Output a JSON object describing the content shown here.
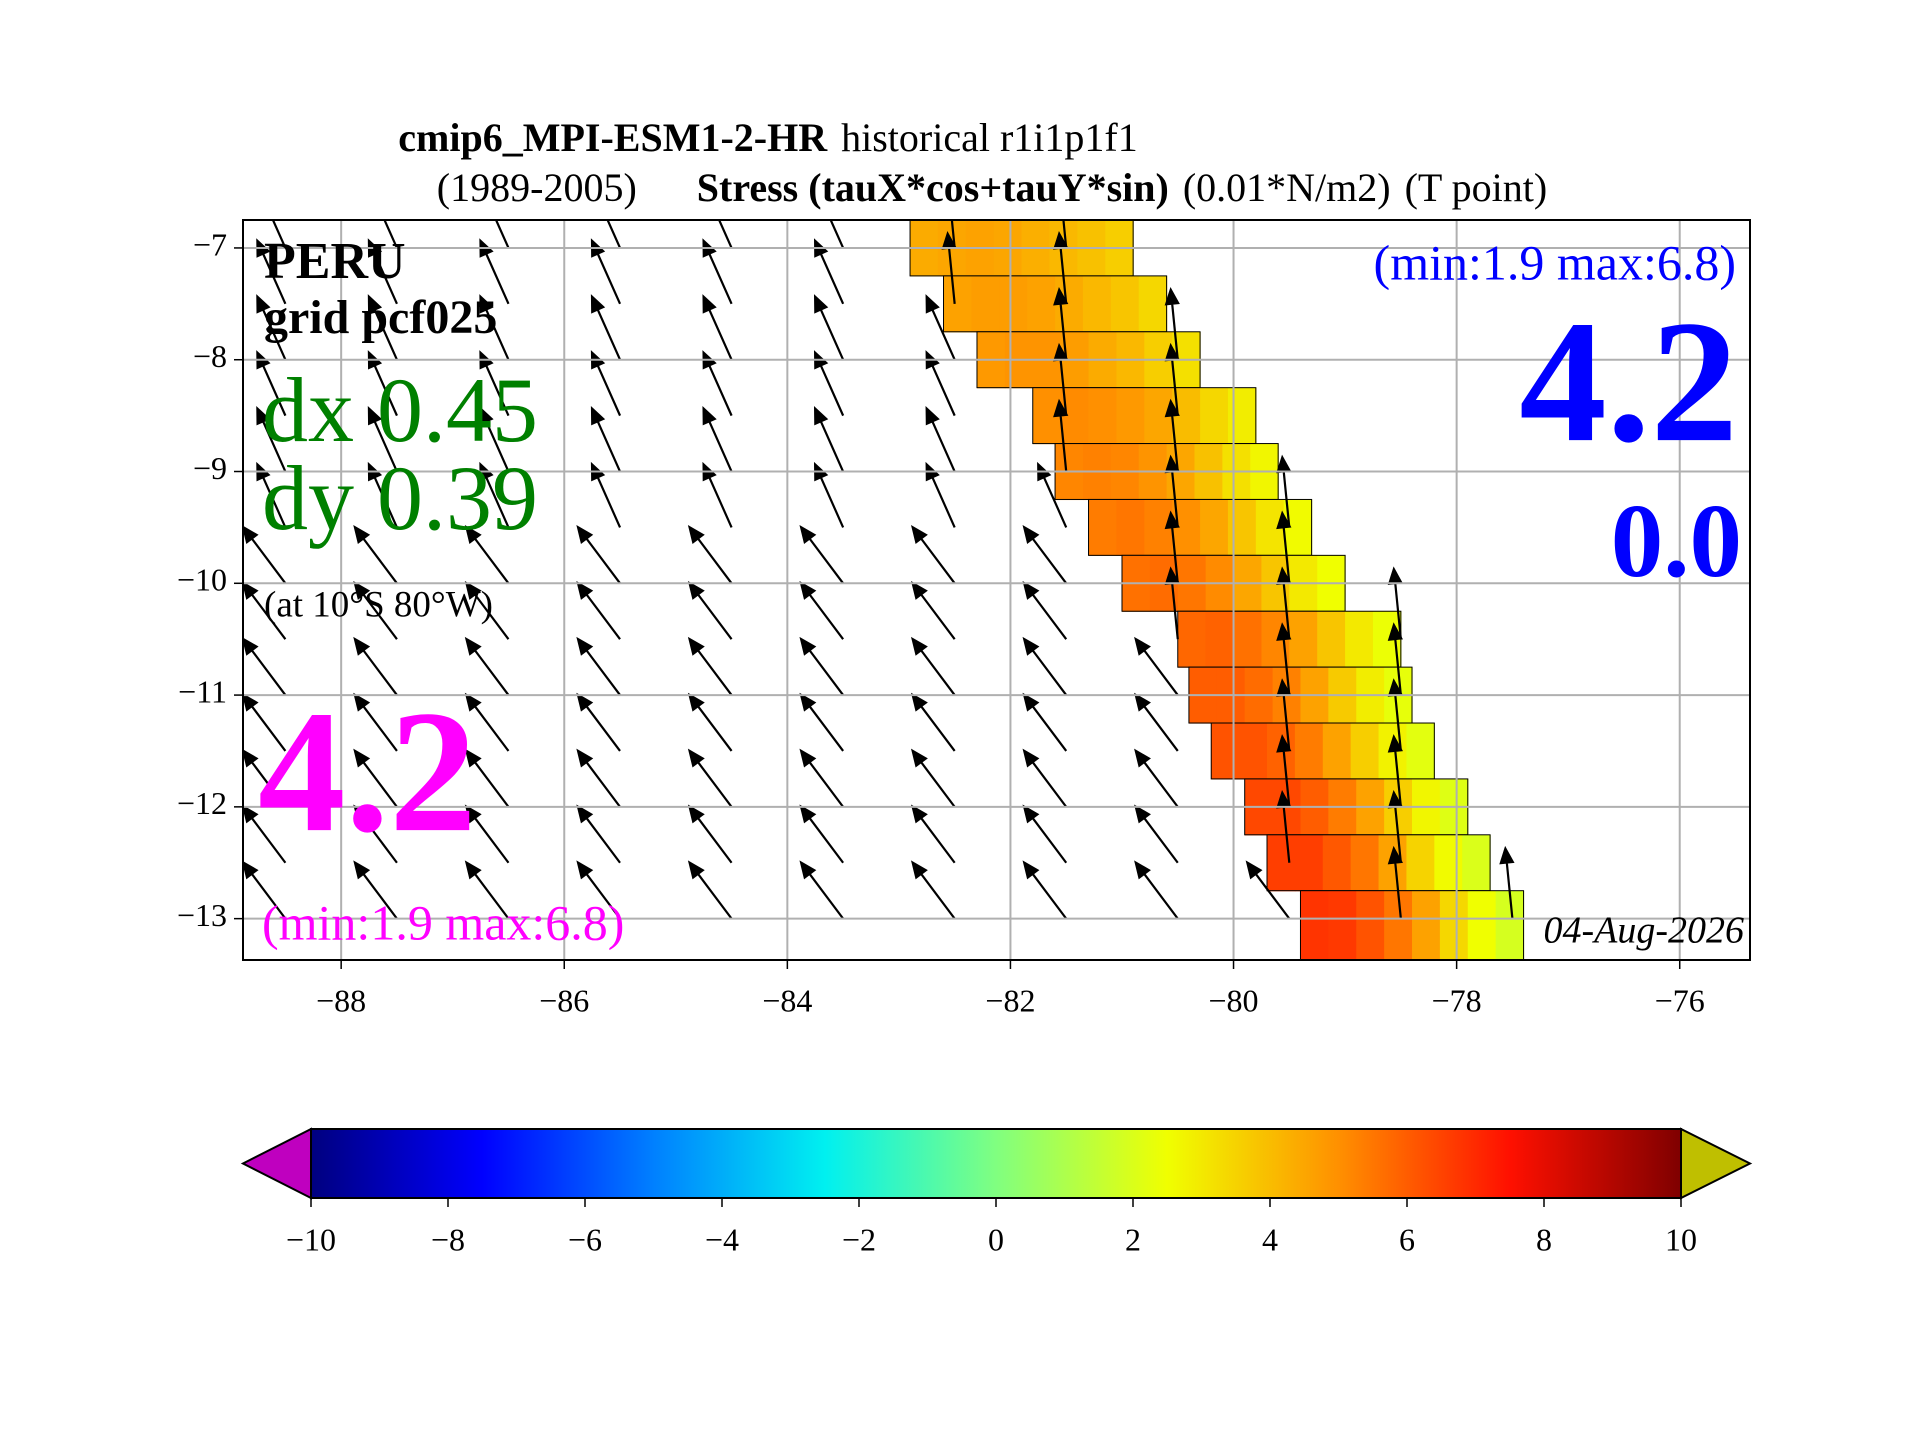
{
  "chart_data": {
    "type": "map",
    "title_line1": [
      {
        "text": "cmip6_MPI-ESM1-2-HR",
        "bold": true
      },
      {
        "text": "historical r1i1p1f1",
        "bold": false
      }
    ],
    "title_line2": [
      {
        "text": "(1989-2005)",
        "bold": false
      },
      {
        "text": "Stress (tauX*cos+tauY*sin)",
        "bold": true
      },
      {
        "text": "(0.01*N/m2)",
        "bold": false
      },
      {
        "text": "(T point)",
        "bold": false
      }
    ],
    "region": "PERU",
    "grid_name": "grid pcf025",
    "dx_label": "dx 0.45",
    "dy_label": "dy 0.39",
    "location_note": "(at 10°S 80°W)",
    "left_value": "4.2",
    "left_range": "(min:1.9 max:6.8)",
    "right_range": "(min:1.9 max:6.8)",
    "right_value": "4.2",
    "right_value2": "0.0",
    "date": "04-Aug-2026",
    "xlim": [
      -88.88,
      -75.37
    ],
    "ylim": [
      -13.37,
      -6.75
    ],
    "xticks": [
      {
        "value": -88,
        "label": "−88"
      },
      {
        "value": -86,
        "label": "−86"
      },
      {
        "value": -84,
        "label": "−84"
      },
      {
        "value": -82,
        "label": "−82"
      },
      {
        "value": -80,
        "label": "−80"
      },
      {
        "value": -78,
        "label": "−78"
      },
      {
        "value": -76,
        "label": "−76"
      }
    ],
    "yticks": [
      {
        "value": -7,
        "label": "−7"
      },
      {
        "value": -8,
        "label": "−8"
      },
      {
        "value": -9,
        "label": "−9"
      },
      {
        "value": -10,
        "label": "−10"
      },
      {
        "value": -11,
        "label": "−11"
      },
      {
        "value": -12,
        "label": "−12"
      },
      {
        "value": -13,
        "label": "−13"
      }
    ],
    "grid": true,
    "clim": [
      -10,
      10
    ],
    "cticks": [
      {
        "value": -10,
        "label": "−10"
      },
      {
        "value": -8,
        "label": "−8"
      },
      {
        "value": -6,
        "label": "−6"
      },
      {
        "value": -4,
        "label": "−4"
      },
      {
        "value": -2,
        "label": "−2"
      },
      0,
      2,
      4,
      6,
      8,
      10
    ],
    "colormap": [
      "#00007f",
      "#0000ff",
      "#0080ff",
      "#00f0f0",
      "#80ff80",
      "#f0ff00",
      "#ff9000",
      "#ff1000",
      "#7f0000"
    ],
    "under_color": "#bf00bf",
    "over_color": "#bfbf00",
    "cells": [
      {
        "lat": [
          -6.75,
          -7.25
        ],
        "lon": [
          -82.9,
          -80.9
        ],
        "values": [
          4.4,
          4.5,
          4.6,
          4.5,
          4.3,
          4.1,
          3.9,
          3.6
        ]
      },
      {
        "lat": [
          -7.25,
          -7.75
        ],
        "lon": [
          -82.6,
          -80.6
        ],
        "values": [
          4.6,
          4.7,
          4.7,
          4.6,
          4.4,
          4.1,
          3.8,
          3.4
        ]
      },
      {
        "lat": [
          -7.75,
          -8.25
        ],
        "lon": [
          -82.3,
          -80.3
        ],
        "values": [
          4.8,
          4.9,
          4.9,
          4.7,
          4.4,
          4.1,
          3.6,
          3.2
        ]
      },
      {
        "lat": [
          -8.25,
          -8.75
        ],
        "lon": [
          -81.8,
          -79.8
        ],
        "values": [
          5.0,
          5.1,
          5.0,
          4.8,
          4.5,
          4.0,
          3.4,
          2.9
        ]
      },
      {
        "lat": [
          -8.75,
          -9.25
        ],
        "lon": [
          -81.6,
          -79.6
        ],
        "values": [
          5.2,
          5.3,
          5.2,
          4.9,
          4.5,
          3.9,
          3.2,
          2.7
        ]
      },
      {
        "lat": [
          -9.25,
          -9.75
        ],
        "lon": [
          -81.3,
          -79.3
        ],
        "values": [
          5.4,
          5.5,
          5.3,
          5.0,
          4.5,
          3.8,
          3.1,
          2.6
        ]
      },
      {
        "lat": [
          -9.75,
          -10.25
        ],
        "lon": [
          -81.0,
          -79.0
        ],
        "values": [
          5.6,
          5.7,
          5.5,
          5.1,
          4.5,
          3.8,
          3.0,
          2.5
        ]
      },
      {
        "lat": [
          -10.25,
          -10.75
        ],
        "lon": [
          -80.5,
          -78.5
        ],
        "values": [
          5.8,
          5.9,
          5.6,
          5.2,
          4.6,
          3.8,
          3.0,
          2.4
        ]
      },
      {
        "lat": [
          -10.75,
          -11.25
        ],
        "lon": [
          -80.4,
          -78.4
        ],
        "values": [
          6.0,
          6.0,
          5.7,
          5.3,
          4.6,
          3.7,
          2.9,
          2.3
        ]
      },
      {
        "lat": [
          -11.25,
          -11.75
        ],
        "lon": [
          -80.2,
          -78.2
        ],
        "values": [
          6.2,
          6.2,
          5.9,
          5.4,
          4.6,
          3.6,
          2.8,
          2.2
        ]
      },
      {
        "lat": [
          -11.75,
          -12.25
        ],
        "lon": [
          -79.9,
          -77.9
        ],
        "values": [
          6.4,
          6.4,
          6.0,
          5.4,
          4.6,
          3.6,
          2.7,
          2.1
        ]
      },
      {
        "lat": [
          -12.25,
          -12.75
        ],
        "lon": [
          -79.7,
          -77.7
        ],
        "values": [
          6.6,
          6.6,
          6.1,
          5.5,
          4.6,
          3.5,
          2.6,
          2.0
        ]
      },
      {
        "lat": [
          -12.75,
          -13.37
        ],
        "lon": [
          -79.4,
          -77.4
        ],
        "values": [
          6.8,
          6.7,
          6.2,
          5.5,
          4.6,
          3.4,
          2.5,
          1.9
        ]
      }
    ],
    "vectors": {
      "lon": [
        -88.5,
        -87.5,
        -86.5,
        -85.5,
        -84.5,
        -83.5,
        -82.5,
        -81.5,
        -80.5,
        -79.5,
        -78.5,
        -77.5,
        -76.5
      ],
      "lat": [
        -7,
        -7.5,
        -8,
        -8.5,
        -9,
        -9.5,
        -10,
        -10.5,
        -11,
        -11.5,
        -12,
        -12.5,
        -13
      ],
      "u": [
        [
          -0.4,
          -0.4,
          -0.4,
          -0.4,
          -0.4,
          -0.4,
          -0.1,
          -0.1,
          null,
          null,
          null,
          null,
          null
        ],
        [
          -0.4,
          -0.4,
          -0.4,
          -0.4,
          -0.4,
          -0.4,
          -0.1,
          -0.1,
          null,
          null,
          null,
          null,
          null
        ],
        [
          -0.4,
          -0.4,
          -0.4,
          -0.4,
          -0.4,
          -0.4,
          -0.4,
          -0.1,
          -0.1,
          null,
          null,
          null,
          null
        ],
        [
          -0.4,
          -0.4,
          -0.4,
          -0.4,
          -0.4,
          -0.4,
          -0.4,
          -0.1,
          -0.1,
          null,
          null,
          null,
          null
        ],
        [
          -0.4,
          -0.4,
          -0.4,
          -0.4,
          -0.4,
          -0.4,
          -0.4,
          -0.1,
          -0.1,
          null,
          null,
          null,
          null
        ],
        [
          -0.4,
          -0.4,
          -0.4,
          -0.4,
          -0.4,
          -0.4,
          -0.4,
          -0.4,
          -0.1,
          -0.1,
          null,
          null,
          null
        ],
        [
          -0.6,
          -0.6,
          -0.6,
          -0.6,
          -0.6,
          -0.6,
          -0.6,
          -0.6,
          -0.1,
          -0.1,
          null,
          null,
          null
        ],
        [
          -0.6,
          -0.6,
          -0.6,
          -0.6,
          -0.6,
          -0.6,
          -0.6,
          -0.6,
          -0.1,
          -0.1,
          -0.1,
          null,
          null
        ],
        [
          -0.6,
          -0.6,
          -0.6,
          -0.6,
          -0.6,
          -0.6,
          -0.6,
          -0.6,
          -0.6,
          -0.1,
          -0.1,
          null,
          null
        ],
        [
          -0.6,
          -0.6,
          -0.6,
          -0.6,
          -0.6,
          -0.6,
          -0.6,
          -0.6,
          -0.6,
          -0.1,
          -0.1,
          null,
          null
        ],
        [
          -0.6,
          -0.6,
          -0.6,
          -0.6,
          -0.6,
          -0.6,
          -0.6,
          -0.6,
          -0.6,
          -0.1,
          -0.1,
          null,
          null
        ],
        [
          -0.6,
          -0.6,
          -0.6,
          -0.6,
          -0.6,
          -0.6,
          -0.6,
          -0.6,
          -0.6,
          -0.1,
          -0.1,
          null,
          null
        ],
        [
          -0.6,
          -0.6,
          -0.6,
          -0.6,
          -0.6,
          -0.6,
          -0.6,
          -0.6,
          -0.6,
          -0.6,
          -0.1,
          -0.1,
          null
        ]
      ],
      "v": [
        [
          0.9,
          0.9,
          0.9,
          0.9,
          0.9,
          0.9,
          1.0,
          1.0,
          null,
          null,
          null,
          null,
          null
        ],
        [
          0.9,
          0.9,
          0.9,
          0.9,
          0.9,
          0.9,
          1.0,
          1.0,
          null,
          null,
          null,
          null,
          null
        ],
        [
          0.9,
          0.9,
          0.9,
          0.9,
          0.9,
          0.9,
          0.9,
          1.0,
          1.0,
          null,
          null,
          null,
          null
        ],
        [
          0.9,
          0.9,
          0.9,
          0.9,
          0.9,
          0.9,
          0.9,
          1.0,
          1.0,
          null,
          null,
          null,
          null
        ],
        [
          0.9,
          0.9,
          0.9,
          0.9,
          0.9,
          0.9,
          0.9,
          1.0,
          1.0,
          null,
          null,
          null,
          null
        ],
        [
          0.9,
          0.9,
          0.9,
          0.9,
          0.9,
          0.9,
          0.9,
          0.9,
          1.0,
          1.0,
          null,
          null,
          null
        ],
        [
          0.8,
          0.8,
          0.8,
          0.8,
          0.8,
          0.8,
          0.8,
          0.8,
          1.0,
          1.0,
          null,
          null,
          null
        ],
        [
          0.8,
          0.8,
          0.8,
          0.8,
          0.8,
          0.8,
          0.8,
          0.8,
          1.0,
          1.0,
          1.0,
          null,
          null
        ],
        [
          0.8,
          0.8,
          0.8,
          0.8,
          0.8,
          0.8,
          0.8,
          0.8,
          0.8,
          1.0,
          1.0,
          null,
          null
        ],
        [
          0.8,
          0.8,
          0.8,
          0.8,
          0.8,
          0.8,
          0.8,
          0.8,
          0.8,
          1.0,
          1.0,
          null,
          null
        ],
        [
          0.8,
          0.8,
          0.8,
          0.8,
          0.8,
          0.8,
          0.8,
          0.8,
          0.8,
          1.0,
          1.0,
          null,
          null
        ],
        [
          0.8,
          0.8,
          0.8,
          0.8,
          0.8,
          0.8,
          0.8,
          0.8,
          0.8,
          1.0,
          1.0,
          null,
          null
        ],
        [
          0.8,
          0.8,
          0.8,
          0.8,
          0.8,
          0.8,
          0.8,
          0.8,
          0.8,
          0.8,
          1.0,
          1.0,
          null
        ]
      ]
    }
  }
}
